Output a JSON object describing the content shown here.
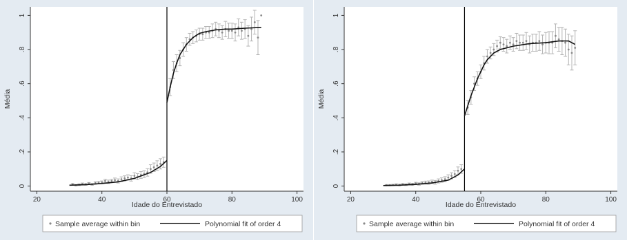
{
  "colors": {
    "outer_background": "#e4ebf2",
    "plot_background": "#ffffff",
    "axis_color": "#333333",
    "fit_line": "#111111",
    "points": "#8a8a8a",
    "error_bars": "#b3b3b3",
    "cutoff_line": "#000000"
  },
  "chart_data": [
    {
      "type": "scatter",
      "title": "",
      "xlabel": "Idade do Entrevistado",
      "ylabel": "Média",
      "xlim": [
        18,
        102
      ],
      "ylim": [
        -0.03,
        1.05
      ],
      "xticks": [
        20,
        40,
        60,
        80,
        100
      ],
      "xtick_labels": [
        "20",
        "40",
        "60",
        "80",
        "100"
      ],
      "yticks": [
        0,
        0.2,
        0.4,
        0.6,
        0.8,
        1
      ],
      "ytick_labels": [
        "0",
        ".2",
        ".4",
        ".6",
        ".8",
        "1"
      ],
      "grid": false,
      "cutoff": 60,
      "legend_position": "bottom",
      "legend": [
        "Sample average within bin",
        "Polynomial fit of order 4"
      ],
      "series": [
        {
          "name": "Sample average within bin",
          "kind": "points_with_error_bars",
          "x": [
            31,
            32,
            33,
            34,
            35,
            36,
            37,
            38,
            39,
            40,
            41,
            42,
            43,
            44,
            45,
            46,
            47,
            48,
            49,
            50,
            51,
            52,
            53,
            54,
            55,
            56,
            57,
            58,
            59,
            61,
            62,
            63,
            64,
            65,
            66,
            67,
            68,
            69,
            70,
            71,
            72,
            73,
            74,
            75,
            76,
            77,
            78,
            79,
            80,
            81,
            82,
            83,
            84,
            85,
            86,
            87,
            88,
            89
          ],
          "y": [
            0.01,
            0.005,
            0.008,
            0.012,
            0.01,
            0.015,
            0.01,
            0.018,
            0.02,
            0.022,
            0.03,
            0.025,
            0.03,
            0.035,
            0.03,
            0.04,
            0.045,
            0.05,
            0.045,
            0.06,
            0.055,
            0.065,
            0.07,
            0.08,
            0.1,
            0.11,
            0.12,
            0.13,
            0.14,
            0.58,
            0.68,
            0.72,
            0.75,
            0.8,
            0.83,
            0.86,
            0.87,
            0.88,
            0.89,
            0.89,
            0.9,
            0.9,
            0.91,
            0.92,
            0.91,
            0.9,
            0.92,
            0.91,
            0.91,
            0.9,
            0.93,
            0.91,
            0.92,
            0.88,
            0.92,
            0.96,
            0.87,
            1.0
          ],
          "err": [
            0.005,
            0.004,
            0.005,
            0.006,
            0.005,
            0.006,
            0.005,
            0.007,
            0.007,
            0.008,
            0.01,
            0.01,
            0.01,
            0.012,
            0.012,
            0.014,
            0.015,
            0.016,
            0.016,
            0.018,
            0.018,
            0.02,
            0.02,
            0.022,
            0.025,
            0.025,
            0.028,
            0.03,
            0.03,
            0.05,
            0.05,
            0.05,
            0.045,
            0.04,
            0.04,
            0.035,
            0.035,
            0.035,
            0.035,
            0.035,
            0.035,
            0.035,
            0.04,
            0.04,
            0.04,
            0.04,
            0.045,
            0.045,
            0.045,
            0.05,
            0.05,
            0.05,
            0.055,
            0.06,
            0.07,
            0.07,
            0.1,
            0.0
          ]
        },
        {
          "name": "Polynomial fit of order 4",
          "kind": "line",
          "segments": [
            {
              "x": [
                30,
                35,
                40,
                45,
                50,
                55,
                58,
                60
              ],
              "y": [
                0.005,
                0.008,
                0.015,
                0.025,
                0.045,
                0.08,
                0.115,
                0.15
              ]
            },
            {
              "x": [
                60,
                61,
                62,
                63,
                64,
                66,
                68,
                70,
                72,
                75,
                78,
                80,
                84,
                89
              ],
              "y": [
                0.49,
                0.58,
                0.66,
                0.72,
                0.77,
                0.83,
                0.87,
                0.895,
                0.905,
                0.915,
                0.92,
                0.92,
                0.925,
                0.93
              ]
            }
          ]
        }
      ]
    },
    {
      "type": "scatter",
      "title": "",
      "xlabel": "Idade do Entrevistado",
      "ylabel": "Média",
      "xlim": [
        18,
        102
      ],
      "ylim": [
        -0.03,
        1.05
      ],
      "xticks": [
        20,
        40,
        60,
        80,
        100
      ],
      "xtick_labels": [
        "20",
        "40",
        "60",
        "80",
        "100"
      ],
      "yticks": [
        0,
        0.2,
        0.4,
        0.6,
        0.8,
        1
      ],
      "ytick_labels": [
        "0",
        ".2",
        ".4",
        ".6",
        ".8",
        "1"
      ],
      "grid": false,
      "cutoff": 55,
      "legend_position": "bottom",
      "legend": [
        "Sample average within bin",
        "Polynomial fit of order 4"
      ],
      "series": [
        {
          "name": "Sample average within bin",
          "kind": "points_with_error_bars",
          "x": [
            31,
            32,
            33,
            34,
            35,
            36,
            37,
            38,
            39,
            40,
            41,
            42,
            43,
            44,
            45,
            46,
            47,
            48,
            49,
            50,
            51,
            52,
            53,
            54,
            56,
            57,
            58,
            59,
            60,
            61,
            62,
            63,
            64,
            65,
            66,
            67,
            68,
            69,
            70,
            71,
            72,
            73,
            74,
            75,
            76,
            77,
            78,
            79,
            80,
            81,
            82,
            83,
            84,
            85,
            86,
            87,
            88,
            89
          ],
          "y": [
            0.005,
            0.005,
            0.006,
            0.008,
            0.006,
            0.01,
            0.008,
            0.012,
            0.01,
            0.015,
            0.012,
            0.018,
            0.02,
            0.02,
            0.025,
            0.022,
            0.03,
            0.035,
            0.04,
            0.05,
            0.06,
            0.07,
            0.09,
            0.1,
            0.46,
            0.52,
            0.6,
            0.63,
            0.67,
            0.72,
            0.76,
            0.78,
            0.8,
            0.82,
            0.84,
            0.83,
            0.82,
            0.84,
            0.83,
            0.85,
            0.84,
            0.84,
            0.85,
            0.83,
            0.84,
            0.84,
            0.85,
            0.83,
            0.84,
            0.84,
            0.84,
            0.88,
            0.86,
            0.85,
            0.84,
            0.8,
            0.78,
            0.81
          ],
          "err": [
            0.004,
            0.004,
            0.004,
            0.005,
            0.005,
            0.005,
            0.005,
            0.006,
            0.006,
            0.007,
            0.007,
            0.008,
            0.009,
            0.01,
            0.01,
            0.011,
            0.012,
            0.013,
            0.015,
            0.016,
            0.018,
            0.02,
            0.022,
            0.025,
            0.04,
            0.04,
            0.04,
            0.04,
            0.04,
            0.04,
            0.04,
            0.035,
            0.035,
            0.035,
            0.035,
            0.04,
            0.04,
            0.04,
            0.04,
            0.045,
            0.045,
            0.045,
            0.05,
            0.05,
            0.05,
            0.05,
            0.055,
            0.055,
            0.06,
            0.065,
            0.065,
            0.07,
            0.07,
            0.08,
            0.08,
            0.09,
            0.1,
            0.1
          ]
        },
        {
          "name": "Polynomial fit of order 4",
          "kind": "line",
          "segments": [
            {
              "x": [
                30,
                35,
                40,
                45,
                50,
                53,
                55
              ],
              "y": [
                0.003,
                0.005,
                0.01,
                0.018,
                0.035,
                0.065,
                0.1
              ]
            },
            {
              "x": [
                55,
                56,
                57,
                58,
                59,
                60,
                61,
                62,
                64,
                66,
                70,
                75,
                80,
                84,
                87,
                89
              ],
              "y": [
                0.41,
                0.47,
                0.53,
                0.58,
                0.63,
                0.67,
                0.71,
                0.74,
                0.78,
                0.8,
                0.82,
                0.835,
                0.84,
                0.85,
                0.85,
                0.83
              ]
            }
          ]
        }
      ]
    }
  ]
}
